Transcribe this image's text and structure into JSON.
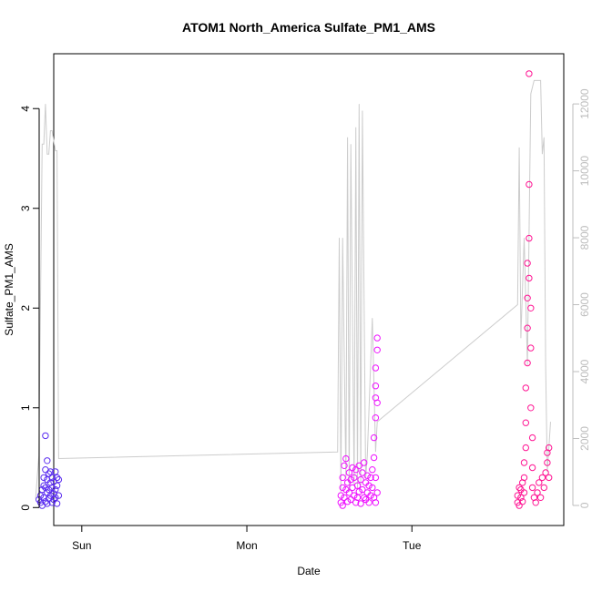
{
  "chart_data": {
    "type": "scatter",
    "title": "ATOM1 North_America Sulfate_PM1_AMS",
    "xlabel": "Date",
    "ylabel": "Sulfate_PM1_AMS",
    "x_unit": "days since Sat 00:00",
    "xlim": [
      0.83,
      3.92
    ],
    "ylim": [
      -0.18,
      4.55
    ],
    "x_ticks": [
      {
        "value": 1,
        "label": "Sun"
      },
      {
        "value": 2,
        "label": "Mon"
      },
      {
        "value": 3,
        "label": "Tue"
      }
    ],
    "y_ticks": [
      0,
      1,
      2,
      3,
      4
    ],
    "y2_ticks": [
      0,
      2000,
      4000,
      6000,
      8000,
      10000,
      12000
    ],
    "y2lim": [
      -600,
      13500
    ],
    "grid": false,
    "legend": "none",
    "colors": {
      "axis": "#000000",
      "right_axis": "#bdbdbd",
      "altitude_line": "#cccccc",
      "flight1": "#5a2cf0",
      "flight2": "#ee11ff",
      "flight3": "#ff1493"
    },
    "series": [
      {
        "role": "scatter",
        "color": "#5a2cf0",
        "points": [
          [
            0.74,
            0.08
          ],
          [
            0.75,
            0.05
          ],
          [
            0.75,
            0.12
          ],
          [
            0.76,
            0.18
          ],
          [
            0.76,
            0.02
          ],
          [
            0.77,
            0.22
          ],
          [
            0.77,
            0.1
          ],
          [
            0.77,
            0.3
          ],
          [
            0.78,
            0.06
          ],
          [
            0.78,
            0.2
          ],
          [
            0.78,
            0.72
          ],
          [
            0.78,
            0.38
          ],
          [
            0.79,
            0.15
          ],
          [
            0.79,
            0.28
          ],
          [
            0.79,
            0.47
          ],
          [
            0.79,
            0.04
          ],
          [
            0.8,
            0.18
          ],
          [
            0.8,
            0.34
          ],
          [
            0.8,
            0.09
          ],
          [
            0.81,
            0.25
          ],
          [
            0.81,
            0.12
          ],
          [
            0.81,
            0.36
          ],
          [
            0.82,
            0.05
          ],
          [
            0.82,
            0.2
          ],
          [
            0.82,
            0.3
          ],
          [
            0.83,
            0.14
          ],
          [
            0.83,
            0.26
          ],
          [
            0.83,
            0.08
          ],
          [
            0.84,
            0.36
          ],
          [
            0.84,
            0.18
          ],
          [
            0.84,
            0.1
          ],
          [
            0.85,
            0.3
          ],
          [
            0.85,
            0.22
          ],
          [
            0.85,
            0.04
          ],
          [
            0.86,
            0.28
          ],
          [
            0.86,
            0.12
          ]
        ]
      },
      {
        "role": "scatter",
        "color": "#ee11ff",
        "points": [
          [
            2.57,
            0.05
          ],
          [
            2.57,
            0.12
          ],
          [
            2.58,
            0.2
          ],
          [
            2.58,
            0.3
          ],
          [
            2.58,
            0.02
          ],
          [
            2.59,
            0.42
          ],
          [
            2.59,
            0.1
          ],
          [
            2.6,
            0.18
          ],
          [
            2.6,
            0.49
          ],
          [
            2.61,
            0.25
          ],
          [
            2.61,
            0.06
          ],
          [
            2.62,
            0.35
          ],
          [
            2.62,
            0.15
          ],
          [
            2.63,
            0.28
          ],
          [
            2.63,
            0.08
          ],
          [
            2.64,
            0.4
          ],
          [
            2.64,
            0.2
          ],
          [
            2.65,
            0.12
          ],
          [
            2.65,
            0.3
          ],
          [
            2.66,
            0.05
          ],
          [
            2.66,
            0.38
          ],
          [
            2.67,
            0.22
          ],
          [
            2.67,
            0.1
          ],
          [
            2.68,
            0.42
          ],
          [
            2.68,
            0.16
          ],
          [
            2.69,
            0.28
          ],
          [
            2.69,
            0.04
          ],
          [
            2.7,
            0.35
          ],
          [
            2.7,
            0.18
          ],
          [
            2.71,
            0.1
          ],
          [
            2.71,
            0.45
          ],
          [
            2.72,
            0.25
          ],
          [
            2.72,
            0.08
          ],
          [
            2.73,
            0.32
          ],
          [
            2.73,
            0.15
          ],
          [
            2.74,
            0.22
          ],
          [
            2.74,
            0.05
          ],
          [
            2.75,
            0.3
          ],
          [
            2.75,
            0.12
          ],
          [
            2.76,
            0.2
          ],
          [
            2.76,
            0.38
          ],
          [
            2.77,
            0.1
          ],
          [
            2.77,
            0.5
          ],
          [
            2.77,
            0.7
          ],
          [
            2.78,
            0.9
          ],
          [
            2.78,
            1.1
          ],
          [
            2.78,
            1.22
          ],
          [
            2.78,
            1.4
          ],
          [
            2.79,
            1.58
          ],
          [
            2.79,
            1.7
          ],
          [
            2.79,
            1.05
          ],
          [
            2.78,
            0.3
          ],
          [
            2.79,
            0.15
          ],
          [
            2.78,
            0.05
          ]
        ]
      },
      {
        "role": "scatter",
        "color": "#ff1493",
        "points": [
          [
            3.64,
            0.05
          ],
          [
            3.64,
            0.12
          ],
          [
            3.65,
            0.2
          ],
          [
            3.65,
            0.02
          ],
          [
            3.66,
            0.1
          ],
          [
            3.66,
            0.18
          ],
          [
            3.67,
            0.25
          ],
          [
            3.67,
            0.06
          ],
          [
            3.68,
            0.15
          ],
          [
            3.68,
            0.3
          ],
          [
            3.68,
            0.45
          ],
          [
            3.69,
            0.6
          ],
          [
            3.69,
            0.85
          ],
          [
            3.69,
            1.2
          ],
          [
            3.7,
            1.45
          ],
          [
            3.7,
            1.8
          ],
          [
            3.7,
            2.1
          ],
          [
            3.7,
            2.45
          ],
          [
            3.71,
            2.7
          ],
          [
            3.71,
            3.24
          ],
          [
            3.71,
            4.35
          ],
          [
            3.71,
            2.3
          ],
          [
            3.72,
            2.0
          ],
          [
            3.72,
            1.6
          ],
          [
            3.72,
            1.0
          ],
          [
            3.73,
            0.7
          ],
          [
            3.73,
            0.4
          ],
          [
            3.73,
            0.2
          ],
          [
            3.74,
            0.1
          ],
          [
            3.75,
            0.05
          ],
          [
            3.76,
            0.15
          ],
          [
            3.77,
            0.25
          ],
          [
            3.78,
            0.1
          ],
          [
            3.79,
            0.3
          ],
          [
            3.8,
            0.2
          ],
          [
            3.81,
            0.35
          ],
          [
            3.82,
            0.45
          ],
          [
            3.82,
            0.55
          ],
          [
            3.83,
            0.6
          ],
          [
            3.83,
            0.3
          ]
        ]
      },
      {
        "role": "line",
        "color": "#cccccc",
        "axis": "right",
        "points": [
          [
            0.72,
            200
          ],
          [
            0.74,
            1500
          ],
          [
            0.76,
            10800
          ],
          [
            0.77,
            10800
          ],
          [
            0.78,
            12000
          ],
          [
            0.79,
            10500
          ],
          [
            0.8,
            10500
          ],
          [
            0.81,
            11200
          ],
          [
            0.82,
            11200
          ],
          [
            0.83,
            10900
          ],
          [
            0.84,
            10600
          ],
          [
            0.85,
            10600
          ],
          [
            0.86,
            1400
          ],
          [
            2.55,
            1600
          ],
          [
            2.56,
            8000
          ],
          [
            2.57,
            400
          ],
          [
            2.58,
            8000
          ],
          [
            2.6,
            800
          ],
          [
            2.61,
            11000
          ],
          [
            2.62,
            400
          ],
          [
            2.63,
            10800
          ],
          [
            2.65,
            600
          ],
          [
            2.66,
            11300
          ],
          [
            2.67,
            500
          ],
          [
            2.68,
            12000
          ],
          [
            2.69,
            600
          ],
          [
            2.7,
            11800
          ],
          [
            2.72,
            800
          ],
          [
            2.73,
            1500
          ],
          [
            2.76,
            5600
          ],
          [
            2.78,
            1600
          ],
          [
            2.79,
            2500
          ],
          [
            3.64,
            6000
          ],
          [
            3.65,
            10700
          ],
          [
            3.66,
            5000
          ],
          [
            3.68,
            8000
          ],
          [
            3.7,
            4200
          ],
          [
            3.72,
            12300
          ],
          [
            3.74,
            12700
          ],
          [
            3.76,
            12700
          ],
          [
            3.78,
            12700
          ],
          [
            3.79,
            10500
          ],
          [
            3.8,
            11000
          ],
          [
            3.81,
            4200
          ],
          [
            3.82,
            1000
          ],
          [
            3.84,
            2500
          ]
        ]
      }
    ]
  }
}
